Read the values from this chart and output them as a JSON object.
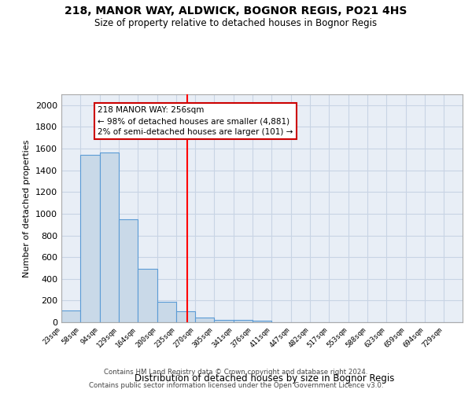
{
  "title1": "218, MANOR WAY, ALDWICK, BOGNOR REGIS, PO21 4HS",
  "title2": "Size of property relative to detached houses in Bognor Regis",
  "xlabel": "Distribution of detached houses by size in Bognor Regis",
  "ylabel": "Number of detached properties",
  "bin_labels": [
    "23sqm",
    "58sqm",
    "94sqm",
    "129sqm",
    "164sqm",
    "200sqm",
    "235sqm",
    "270sqm",
    "305sqm",
    "341sqm",
    "376sqm",
    "411sqm",
    "447sqm",
    "482sqm",
    "517sqm",
    "553sqm",
    "588sqm",
    "623sqm",
    "659sqm",
    "694sqm",
    "729sqm"
  ],
  "bin_edges": [
    23,
    58,
    94,
    129,
    164,
    200,
    235,
    270,
    305,
    341,
    376,
    411,
    447,
    482,
    517,
    553,
    588,
    623,
    659,
    694,
    729,
    764
  ],
  "bar_heights": [
    110,
    1540,
    1565,
    950,
    490,
    190,
    100,
    40,
    25,
    20,
    15,
    0,
    0,
    0,
    0,
    0,
    0,
    0,
    0,
    0,
    0
  ],
  "bar_color": "#c9d9e8",
  "bar_edge_color": "#5b9bd5",
  "grid_color": "#c8d4e4",
  "background_color": "#e8eef6",
  "red_line_x": 256,
  "annotation_text": "218 MANOR WAY: 256sqm\n← 98% of detached houses are smaller (4,881)\n2% of semi-detached houses are larger (101) →",
  "annotation_box_color": "#ffffff",
  "annotation_box_edge": "#cc0000",
  "ylim": [
    0,
    2100
  ],
  "yticks": [
    0,
    200,
    400,
    600,
    800,
    1000,
    1200,
    1400,
    1600,
    1800,
    2000
  ],
  "footer1": "Contains HM Land Registry data © Crown copyright and database right 2024.",
  "footer2": "Contains public sector information licensed under the Open Government Licence v3.0."
}
